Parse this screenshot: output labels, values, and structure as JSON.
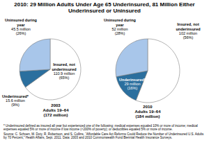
{
  "title": "2010: 29 Million Adults Under Age 65 Underinsured, 81 Million Either Underinsured or Uninsured",
  "chart_data": [
    {
      "type": "pie",
      "title": "2003",
      "subtitle": [
        "Adults 19–64",
        "(172 million)"
      ],
      "categories": [
        "Insured, not underinsured",
        "Underinsured*",
        "Uninsured during year"
      ],
      "values": [
        65,
        9,
        26
      ],
      "value_labels": [
        "(65%)",
        "(9%)",
        "(26%)"
      ],
      "amounts": [
        110.9,
        15.6,
        45.5
      ],
      "amount_labels": [
        "110.9 million",
        "15.6 million",
        "45.5 million"
      ],
      "colors": [
        "#ffffff",
        "#2b6f9e",
        "#a8c6ea"
      ],
      "data_labels": true
    },
    {
      "type": "pie",
      "title": "2010",
      "subtitle": [
        "Adults 19–64",
        "(184 million)"
      ],
      "categories": [
        "Insured, not underinsured",
        "Underinsured*",
        "Uninsured during year"
      ],
      "values": [
        56,
        16,
        28
      ],
      "value_labels": [
        "(56%)",
        "(16%)",
        "(28%)"
      ],
      "amounts": [
        102,
        29,
        52
      ],
      "amount_labels": [
        "102 million",
        "29 million",
        "52 million"
      ],
      "colors": [
        "#ffffff",
        "#2b6f9e",
        "#a8c6ea"
      ],
      "data_labels": true
    }
  ],
  "footnote": "* Underinsured defined as insured all year but experienced one of the following: medical expenses equaled 10% or more of income; medical expenses equaled 5% or more of income if low income (<200% of poverty); or deductibles equaled 5% or more of income.",
  "source": "Source: C. Schoen, M. Doty, R. Robertson, and S. Collins, “Affordable Care Act Reforms Could Reduce the Number of Underinsured U.S. Adults by 70 Percent,” Health Affairs, Sept. 2011. Data: 2003 and 2010 Commonwealth Fund Biennial Health Insurance Surveys."
}
